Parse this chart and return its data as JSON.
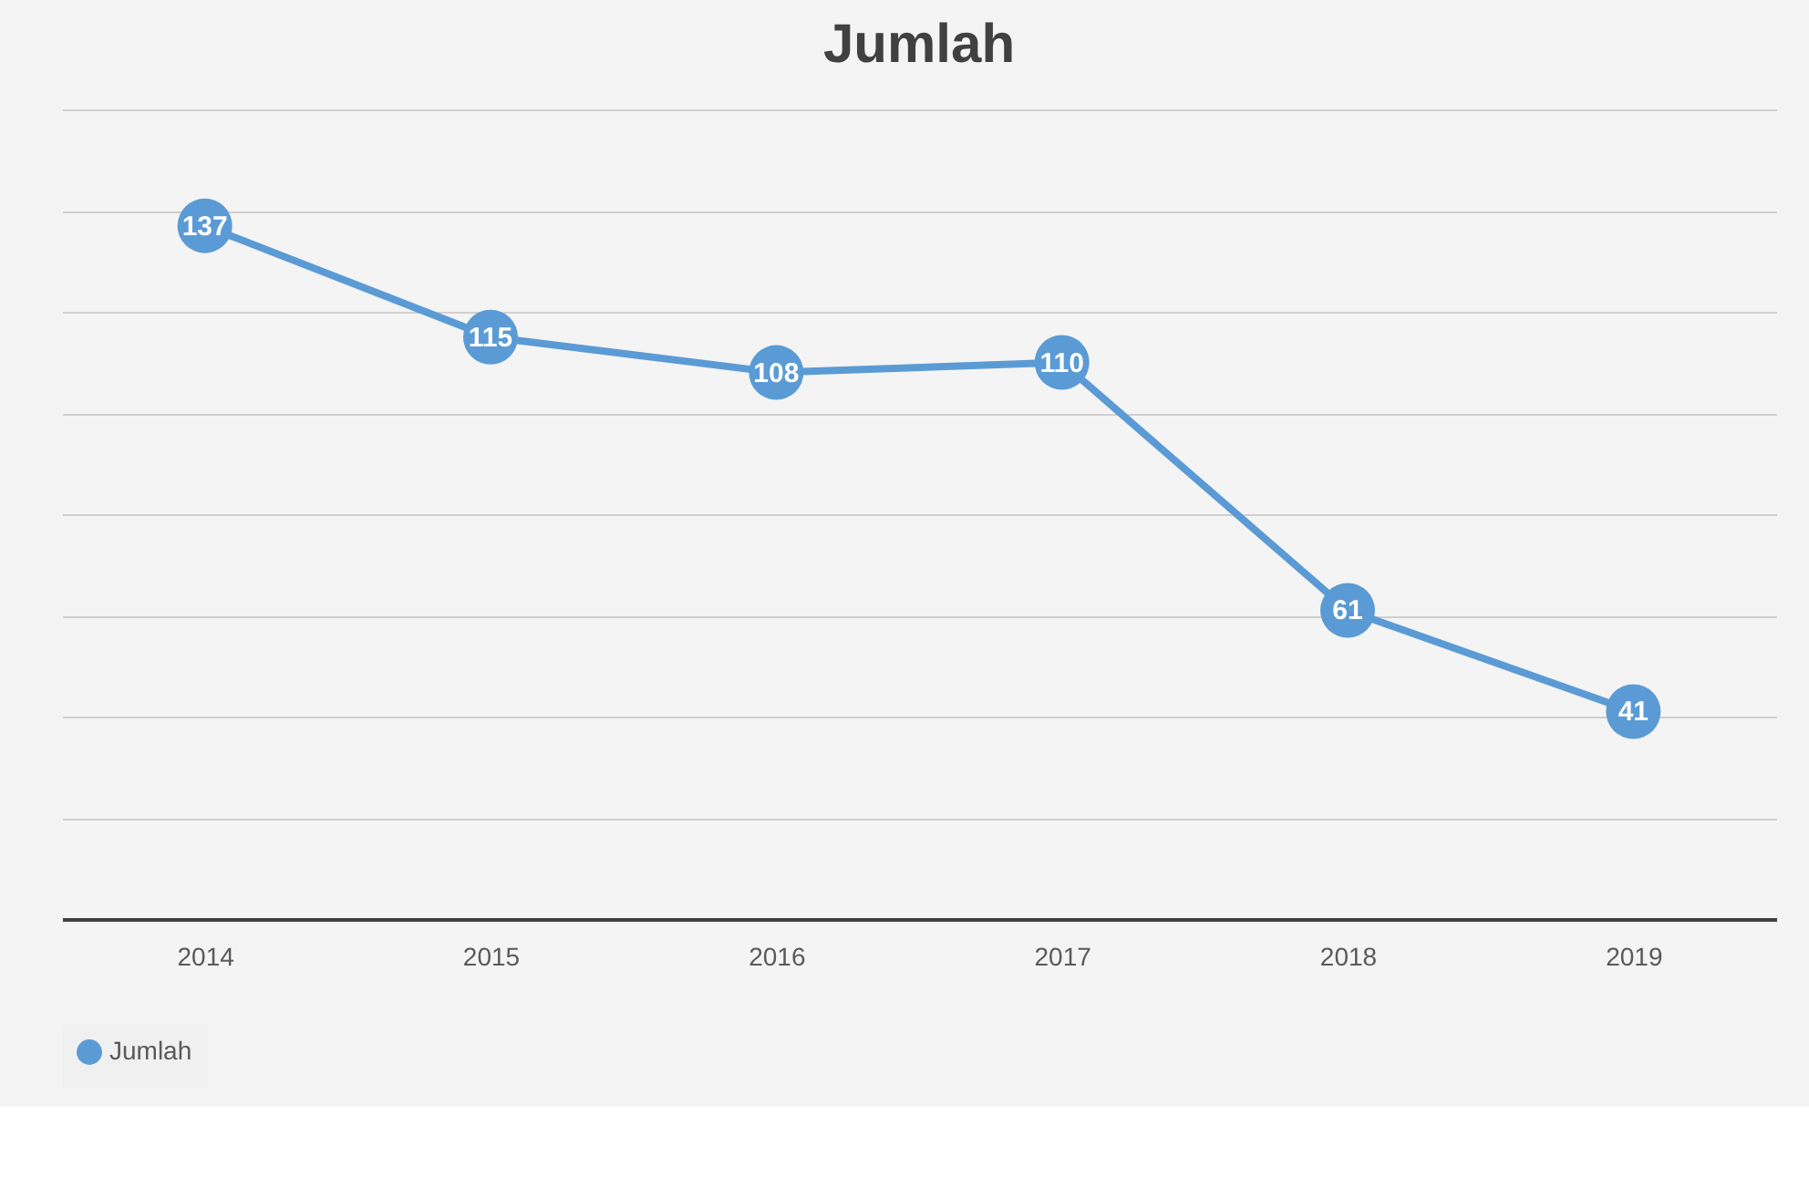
{
  "chart_data": {
    "type": "line",
    "title": "Jumlah",
    "categories": [
      "2014",
      "2015",
      "2016",
      "2017",
      "2018",
      "2019"
    ],
    "series": [
      {
        "name": "Jumlah",
        "color": "#5b9bd5",
        "values": [
          137,
          115,
          108,
          110,
          61,
          41
        ]
      }
    ],
    "ylim": [
      0,
      160
    ],
    "yticks": [
      {
        "value": 0,
        "label": null
      },
      {
        "value": 20,
        "label": null
      },
      {
        "value": 40,
        "label": null
      },
      {
        "value": 60,
        "label": null
      },
      {
        "value": 80,
        "label": null
      },
      {
        "value": 100,
        "label": null
      },
      {
        "value": 120,
        "label": null
      },
      {
        "value": 140,
        "label": null
      },
      {
        "value": 160,
        "label": null
      }
    ],
    "grid": "y",
    "legend": "bottom",
    "marker": "circle",
    "line_style": "solid",
    "data_labels": true,
    "tick_labels": "x"
  }
}
